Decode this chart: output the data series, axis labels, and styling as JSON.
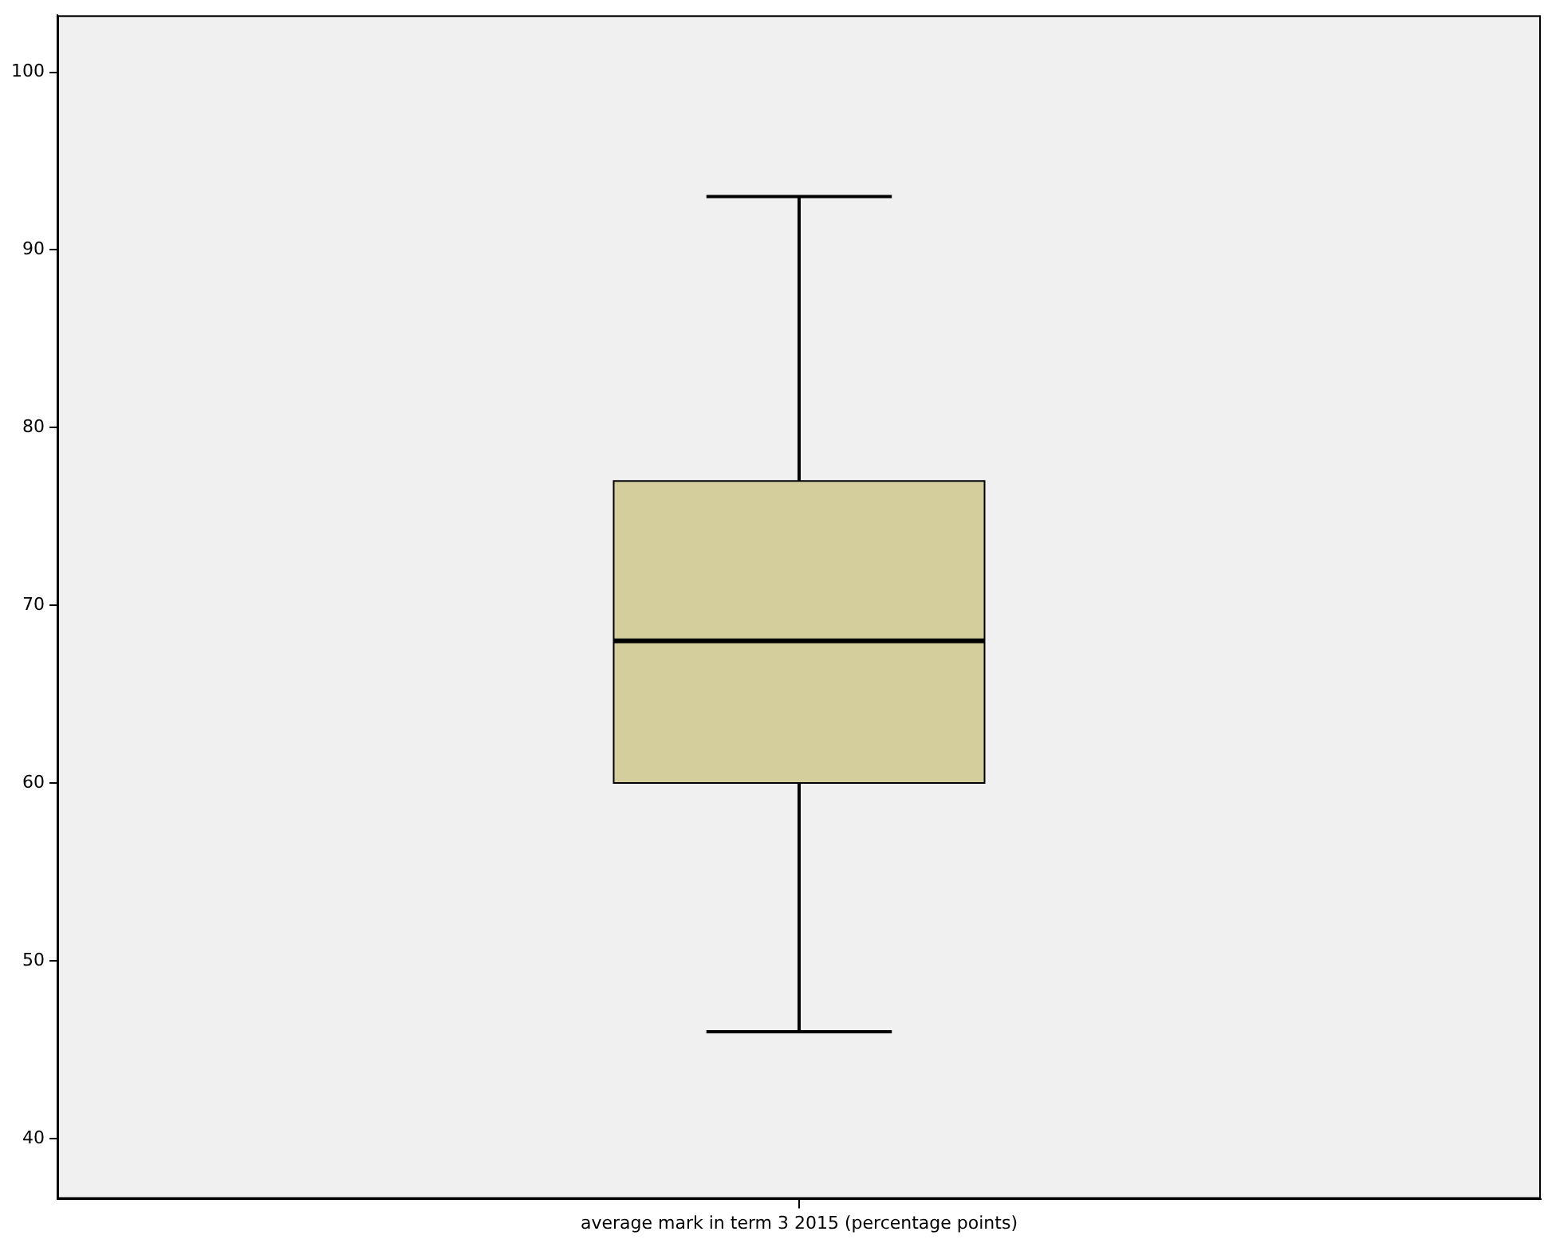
{
  "chart_data": {
    "type": "box",
    "categories": [
      "average mark in term 3 2015 (percentage points)"
    ],
    "boxes": [
      {
        "low": 46,
        "q1": 60,
        "median": 68,
        "q3": 77,
        "high": 93
      }
    ],
    "color": "#d3ce9c",
    "ylim": [
      36.6,
      103.2
    ],
    "yticks": [
      40,
      50,
      60,
      70,
      80,
      90,
      100
    ]
  }
}
